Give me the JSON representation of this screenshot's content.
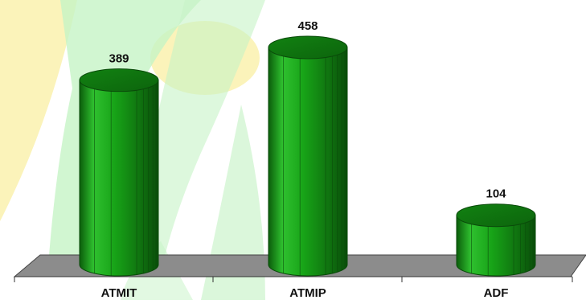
{
  "chart_data": {
    "type": "bar",
    "style": "3d-cylinder",
    "categories": [
      "ATMIT",
      "ATMIP",
      "ADF"
    ],
    "values": [
      389,
      458,
      104
    ],
    "data_labels": [
      "389",
      "458",
      "104"
    ],
    "title": "",
    "xlabel": "",
    "ylabel": "",
    "ylim": [
      0,
      500
    ],
    "grid": false,
    "legend": "none"
  },
  "colors": {
    "bar_dark": "#0b5d0b",
    "bar_mid": "#17a317",
    "bar_light": "#2fc02f",
    "floor": "#8c8c8c",
    "watermark_green": "#b8f0b8",
    "watermark_yellow": "#fbf2b3"
  }
}
